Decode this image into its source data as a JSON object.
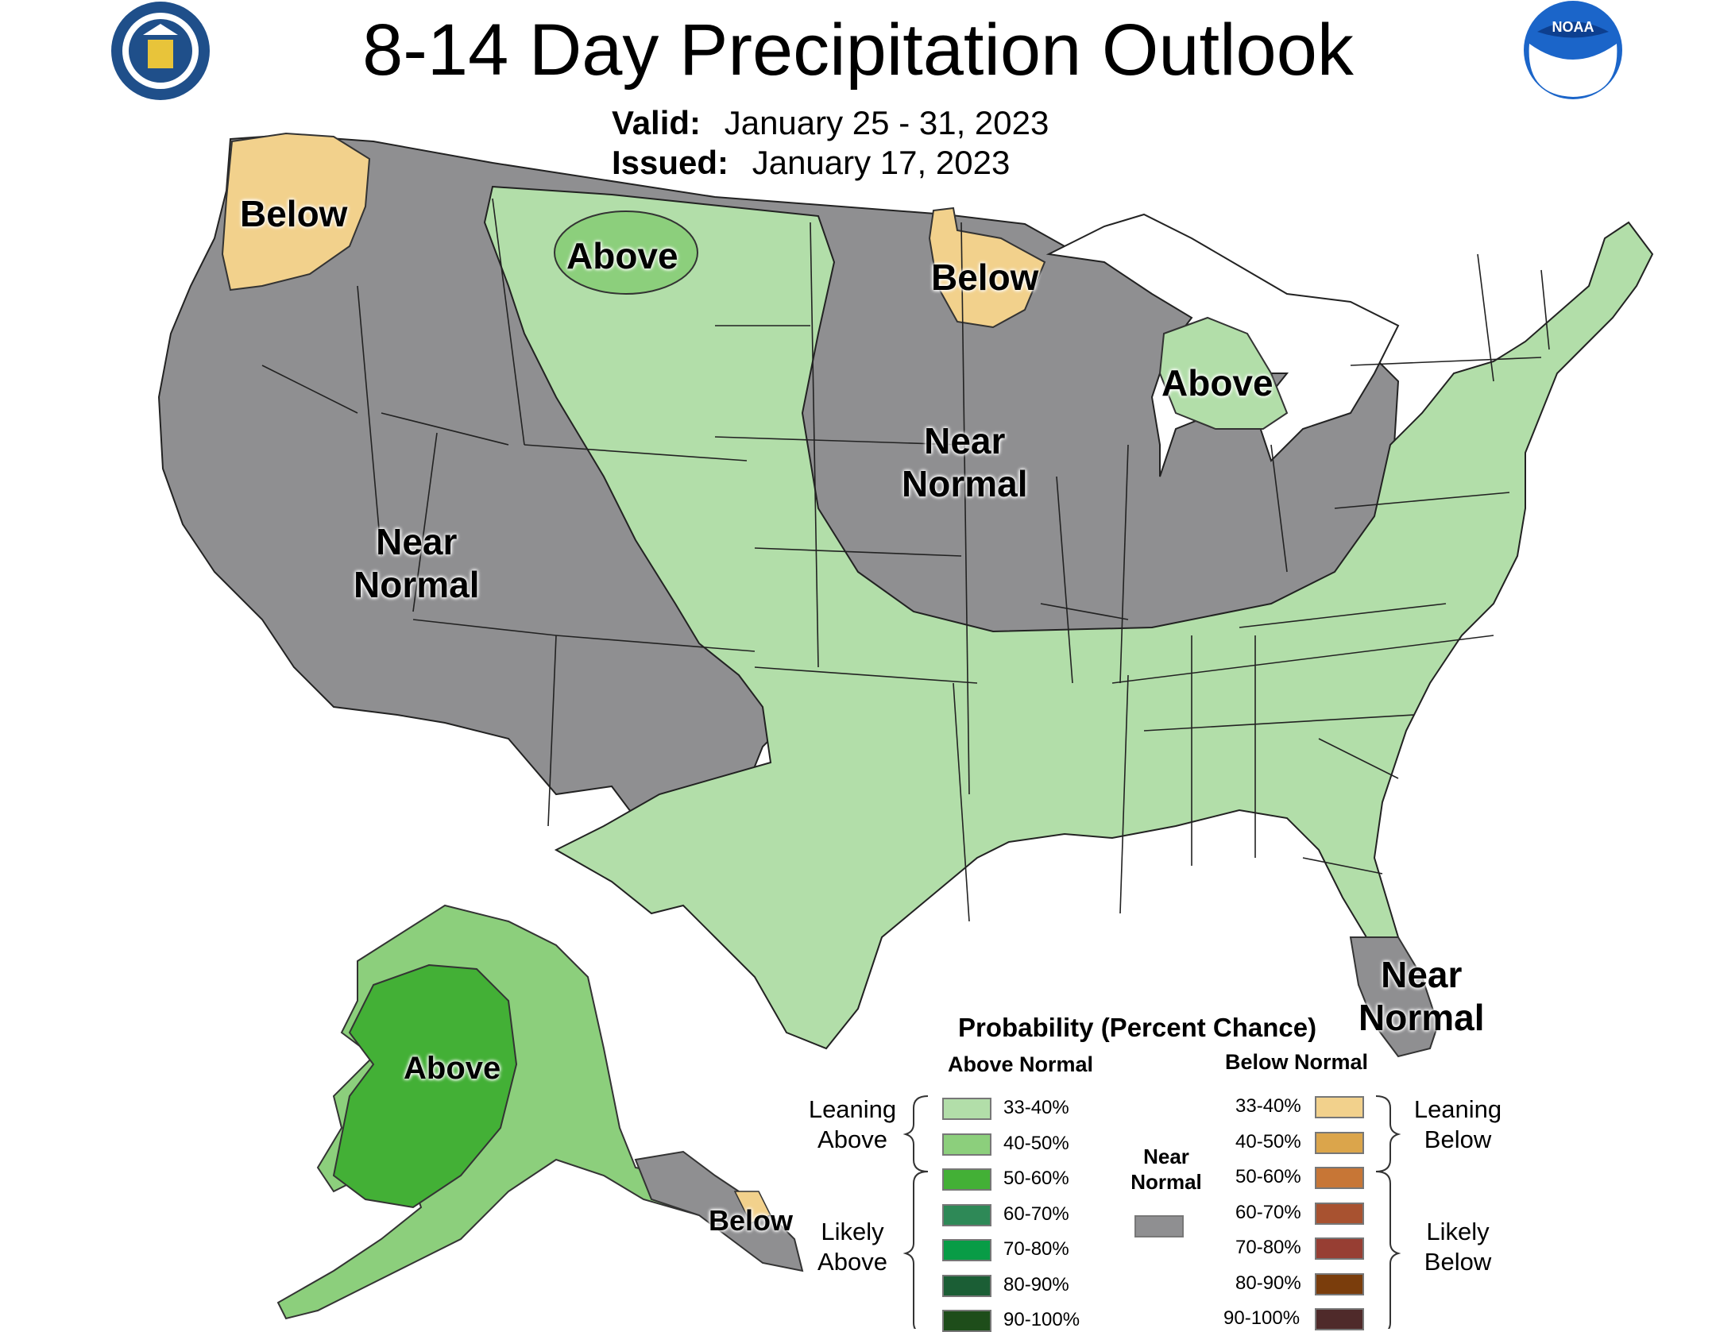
{
  "title": "8-14 Day Precipitation Outlook",
  "valid": {
    "key": "Valid:",
    "value": "January 25 - 31, 2023"
  },
  "issued": {
    "key": "Issued:",
    "value": "January 17, 2023"
  },
  "logos": {
    "left": "department-of-commerce-seal",
    "right": "noaa-logo"
  },
  "colors": {
    "near_normal": "#8f8f91",
    "above_33_40": "#b2dea9",
    "above_40_50": "#8ccf7c",
    "above_50_60": "#43b036",
    "above_60_70": "#2e8957",
    "above_70_80": "#089c46",
    "above_80_90": "#1b5e35",
    "above_90_100": "#1e4d1a",
    "below_33_40": "#f2d18c",
    "below_40_50": "#dba54b",
    "below_50_60": "#c77636",
    "below_60_70": "#a85230",
    "below_70_80": "#973e33",
    "below_80_90": "#7a3d0c",
    "below_90_100": "#4f2a2a"
  },
  "region_labels": {
    "wa_below": "Below",
    "mt_above": "Above",
    "mn_below": "Below",
    "mi_above": "Above",
    "central_near": [
      "Near",
      "Normal"
    ],
    "west_near": [
      "Near",
      "Normal"
    ],
    "fl_near": [
      "Near",
      "Normal"
    ],
    "ak_above": "Above",
    "ak_below": "Below"
  },
  "legend": {
    "title": "Probability (Percent Chance)",
    "above_header": "Above Normal",
    "below_header": "Below Normal",
    "near_header": [
      "Near",
      "Normal"
    ],
    "above_items": [
      "33-40%",
      "40-50%",
      "50-60%",
      "60-70%",
      "70-80%",
      "80-90%",
      "90-100%"
    ],
    "below_items": [
      "33-40%",
      "40-50%",
      "50-60%",
      "60-70%",
      "70-80%",
      "80-90%",
      "90-100%"
    ],
    "leaning_above": [
      "Leaning",
      "Above"
    ],
    "likely_above": [
      "Likely",
      "Above"
    ],
    "leaning_below": [
      "Leaning",
      "Below"
    ],
    "likely_below": [
      "Likely",
      "Below"
    ]
  }
}
